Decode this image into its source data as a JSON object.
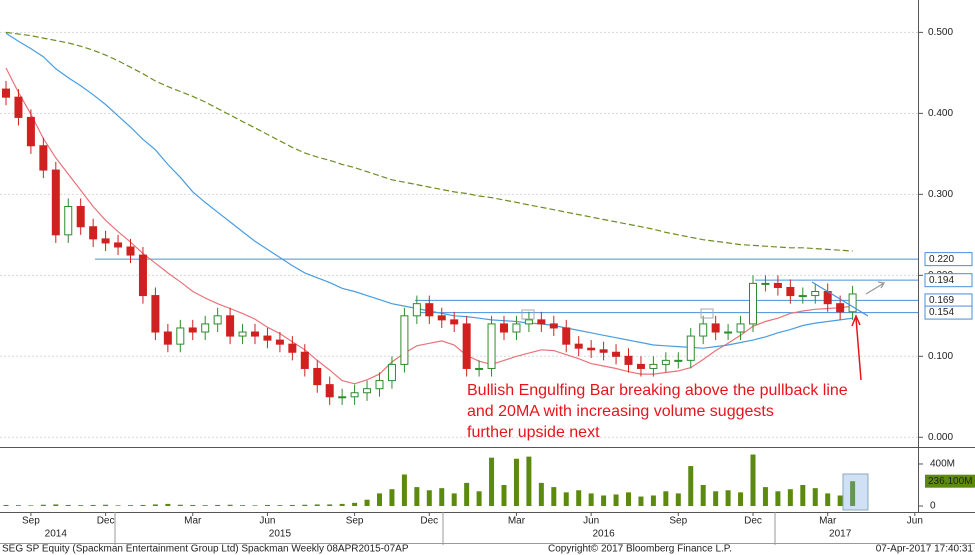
{
  "chart_data": {
    "type": "candlestick",
    "categories": [
      null,
      null,
      "Sep",
      null,
      null,
      null,
      null,
      null,
      "Dec",
      null,
      null,
      null,
      null,
      null,
      null,
      "Mar",
      null,
      null,
      null,
      null,
      null,
      "Jun",
      null,
      null,
      null,
      null,
      null,
      null,
      "Sep",
      null,
      null,
      null,
      null,
      null,
      "Dec",
      null,
      null,
      null,
      null,
      null,
      null,
      "Mar",
      null,
      null,
      null,
      null,
      null,
      "Jun",
      null,
      null,
      null,
      null,
      null,
      null,
      "Sep",
      null,
      null,
      null,
      null,
      null,
      "Dec",
      null,
      null,
      null,
      null,
      null,
      "Mar",
      null,
      null,
      null,
      null,
      null,
      null,
      "Jun"
    ],
    "year_labels": [
      null,
      null,
      null,
      null,
      "2014",
      null,
      null,
      null,
      null,
      null,
      null,
      null,
      null,
      null,
      null,
      null,
      null,
      null,
      null,
      null,
      null,
      null,
      "2015",
      null,
      null,
      null,
      null,
      null,
      null,
      null,
      null,
      null,
      null,
      null,
      null,
      null,
      null,
      null,
      null,
      null,
      null,
      null,
      null,
      null,
      null,
      null,
      null,
      null,
      "2016",
      null,
      null,
      null,
      null,
      null,
      null,
      null,
      null,
      null,
      null,
      null,
      null,
      null,
      null,
      null,
      null,
      null,
      null,
      "2017",
      null,
      null,
      null,
      null,
      null,
      null
    ],
    "candles": {
      "up_color": "#2e8b2e",
      "down_color": "#d02020",
      "open": [
        0.43,
        0.42,
        0.395,
        0.36,
        0.33,
        0.25,
        0.285,
        0.26,
        0.245,
        0.24,
        0.235,
        0.225,
        0.175,
        0.13,
        0.115,
        0.135,
        0.13,
        0.14,
        0.15,
        0.125,
        0.13,
        0.125,
        0.12,
        0.115,
        0.105,
        0.085,
        0.065,
        0.05,
        0.05,
        0.055,
        0.06,
        0.07,
        0.09,
        0.15,
        0.165,
        0.15,
        0.145,
        0.14,
        0.085,
        0.085,
        0.14,
        0.13,
        0.14,
        0.145,
        0.14,
        0.135,
        0.115,
        0.11,
        0.108,
        0.105,
        0.1,
        0.09,
        0.085,
        0.09,
        0.095,
        0.095,
        0.125,
        0.14,
        0.13,
        0.13,
        0.14,
        0.19,
        0.19,
        0.185,
        0.175,
        0.175,
        0.18,
        0.165,
        0.155,
        null,
        null,
        null,
        null,
        null
      ],
      "high": [
        0.44,
        0.43,
        0.405,
        0.37,
        0.34,
        0.295,
        0.295,
        0.27,
        0.255,
        0.25,
        0.245,
        0.235,
        0.185,
        0.14,
        0.145,
        0.145,
        0.15,
        0.16,
        0.16,
        0.14,
        0.14,
        0.135,
        0.13,
        0.125,
        0.115,
        0.095,
        0.075,
        0.06,
        0.065,
        0.07,
        0.08,
        0.1,
        0.16,
        0.175,
        0.175,
        0.16,
        0.155,
        0.15,
        0.095,
        0.15,
        0.15,
        0.15,
        0.155,
        0.155,
        0.15,
        0.145,
        0.125,
        0.12,
        0.118,
        0.115,
        0.11,
        0.1,
        0.1,
        0.105,
        0.105,
        0.135,
        0.15,
        0.15,
        0.14,
        0.15,
        0.2,
        0.2,
        0.2,
        0.195,
        0.185,
        0.19,
        0.19,
        0.175,
        0.187,
        null,
        null,
        null,
        null,
        null
      ],
      "low": [
        0.41,
        0.385,
        0.35,
        0.32,
        0.24,
        0.24,
        0.25,
        0.235,
        0.23,
        0.225,
        0.215,
        0.165,
        0.12,
        0.105,
        0.105,
        0.12,
        0.12,
        0.13,
        0.115,
        0.115,
        0.115,
        0.11,
        0.105,
        0.095,
        0.075,
        0.055,
        0.04,
        0.04,
        0.04,
        0.045,
        0.05,
        0.06,
        0.08,
        0.14,
        0.14,
        0.135,
        0.13,
        0.075,
        0.075,
        0.075,
        0.12,
        0.12,
        0.13,
        0.13,
        0.125,
        0.105,
        0.1,
        0.098,
        0.095,
        0.09,
        0.08,
        0.075,
        0.075,
        0.08,
        0.085,
        0.085,
        0.115,
        0.12,
        0.12,
        0.12,
        0.13,
        0.18,
        0.175,
        0.165,
        0.165,
        0.165,
        0.155,
        0.145,
        0.145,
        null,
        null,
        null,
        null,
        null
      ],
      "close": [
        0.42,
        0.395,
        0.36,
        0.33,
        0.25,
        0.285,
        0.26,
        0.245,
        0.24,
        0.235,
        0.225,
        0.175,
        0.13,
        0.115,
        0.135,
        0.13,
        0.14,
        0.15,
        0.125,
        0.13,
        0.125,
        0.12,
        0.115,
        0.105,
        0.085,
        0.065,
        0.05,
        0.05,
        0.055,
        0.06,
        0.07,
        0.09,
        0.15,
        0.165,
        0.15,
        0.145,
        0.14,
        0.085,
        0.085,
        0.14,
        0.13,
        0.14,
        0.145,
        0.14,
        0.135,
        0.115,
        0.11,
        0.108,
        0.105,
        0.1,
        0.09,
        0.085,
        0.09,
        0.095,
        0.095,
        0.125,
        0.14,
        0.13,
        0.13,
        0.14,
        0.19,
        0.19,
        0.185,
        0.175,
        0.175,
        0.18,
        0.165,
        0.155,
        0.177,
        null,
        null,
        null,
        null,
        null
      ]
    },
    "series": [
      {
        "color": "#e8737a",
        "dash": false,
        "values": [
          0.456,
          0.426,
          0.399,
          0.369,
          0.345,
          0.325,
          0.305,
          0.285,
          0.268,
          0.254,
          0.241,
          0.227,
          0.215,
          0.203,
          0.192,
          0.18,
          0.172,
          0.165,
          0.159,
          0.153,
          0.146,
          0.136,
          0.128,
          0.118,
          0.108,
          0.095,
          0.083,
          0.07,
          0.066,
          0.071,
          0.078,
          0.093,
          0.104,
          0.113,
          0.116,
          0.119,
          0.114,
          0.101,
          0.094,
          0.09,
          0.095,
          0.1,
          0.104,
          0.108,
          0.107,
          0.102,
          0.097,
          0.091,
          0.088,
          0.085,
          0.081,
          0.078,
          0.078,
          0.08,
          0.082,
          0.086,
          0.096,
          0.107,
          0.116,
          0.126,
          0.137,
          0.143,
          0.147,
          0.153,
          0.156,
          0.158,
          0.159,
          0.16,
          0.162,
          null,
          null,
          null,
          null,
          null
        ]
      },
      {
        "color": "#4a9de0",
        "dash": false,
        "values": [
          0.499,
          0.489,
          0.48,
          0.47,
          0.455,
          0.444,
          0.434,
          0.423,
          0.411,
          0.397,
          0.383,
          0.368,
          0.355,
          0.337,
          0.321,
          0.303,
          0.29,
          0.278,
          0.266,
          0.254,
          0.242,
          0.232,
          0.222,
          0.212,
          0.203,
          0.197,
          0.191,
          0.184,
          0.18,
          0.175,
          0.17,
          0.165,
          0.162,
          0.159,
          0.156,
          0.153,
          0.15,
          0.149,
          0.147,
          0.145,
          0.144,
          0.143,
          0.141,
          0.14,
          0.138,
          0.135,
          0.132,
          0.129,
          0.126,
          0.123,
          0.12,
          0.117,
          0.114,
          0.113,
          0.112,
          0.111,
          0.11,
          0.112,
          0.114,
          0.117,
          0.12,
          0.124,
          0.129,
          0.133,
          0.138,
          0.141,
          0.143,
          0.145,
          0.147,
          null,
          null,
          null,
          null,
          null
        ]
      },
      {
        "color": "#6b8e23",
        "dash": true,
        "values": [
          0.5,
          0.498,
          0.496,
          0.493,
          0.49,
          0.487,
          0.483,
          0.478,
          0.472,
          0.465,
          0.457,
          0.449,
          0.44,
          0.433,
          0.427,
          0.421,
          0.414,
          0.406,
          0.398,
          0.39,
          0.382,
          0.374,
          0.366,
          0.358,
          0.351,
          0.346,
          0.342,
          0.337,
          0.333,
          0.328,
          0.323,
          0.318,
          0.315,
          0.312,
          0.309,
          0.306,
          0.303,
          0.301,
          0.298,
          0.296,
          0.293,
          0.29,
          0.287,
          0.284,
          0.281,
          0.278,
          0.275,
          0.272,
          0.269,
          0.266,
          0.263,
          0.26,
          0.257,
          0.253,
          0.25,
          0.247,
          0.244,
          0.242,
          0.24,
          0.238,
          0.237,
          0.236,
          0.235,
          0.234,
          0.234,
          0.233,
          0.232,
          0.231,
          0.23,
          null,
          null,
          null,
          null,
          null
        ]
      }
    ],
    "ylim": [
      -0.012,
      0.54
    ],
    "yticks": [
      {
        "value": 0,
        "label": "0.000"
      },
      {
        "value": 0.1,
        "label": "0.100"
      },
      {
        "value": 0.2,
        "label": "0.200"
      },
      {
        "value": 0.3,
        "label": "0.300"
      },
      {
        "value": 0.4,
        "label": "0.400"
      },
      {
        "value": 0.5,
        "label": "0.500"
      }
    ],
    "grid": true,
    "levels": {
      "color": "#4a8fdc",
      "values": [
        {
          "value": 0.22,
          "label": "0.220"
        },
        {
          "value": 0.194,
          "label": "0.194"
        },
        {
          "value": 0.169,
          "label": "0.169"
        },
        {
          "value": 0.154,
          "label": "0.154"
        }
      ]
    },
    "volume": {
      "color": "#5c8a0f",
      "values": [
        10,
        8,
        6,
        12,
        15,
        10,
        8,
        10,
        12,
        6,
        8,
        10,
        15,
        20,
        12,
        10,
        8,
        10,
        12,
        8,
        6,
        10,
        8,
        10,
        12,
        15,
        15,
        20,
        30,
        60,
        120,
        160,
        300,
        180,
        150,
        170,
        120,
        220,
        140,
        460,
        200,
        450,
        470,
        220,
        180,
        130,
        150,
        120,
        100,
        110,
        130,
        90,
        100,
        140,
        120,
        380,
        200,
        140,
        150,
        130,
        490,
        180,
        140,
        160,
        200,
        170,
        120,
        100,
        236.1,
        null,
        null,
        null,
        null,
        null
      ],
      "value_labels": [
        null,
        null,
        null,
        null,
        null,
        null,
        null,
        null,
        null,
        null,
        null,
        null,
        null,
        null,
        null,
        null,
        null,
        null,
        null,
        null,
        null,
        null,
        null,
        null,
        null,
        null,
        null,
        null,
        null,
        null,
        null,
        null,
        null,
        null,
        null,
        null,
        null,
        null,
        null,
        null,
        null,
        null,
        null,
        null,
        null,
        null,
        null,
        null,
        null,
        null,
        null,
        null,
        null,
        null,
        null,
        null,
        null,
        null,
        null,
        null,
        null,
        null,
        null,
        null,
        null,
        null,
        null,
        null,
        "236.100M",
        null,
        null,
        null,
        null,
        null
      ],
      "ylim": [
        -57,
        533
      ],
      "yticks": [
        0,
        {
          "value": 400,
          "label": "400M"
        }
      ]
    },
    "annotation": [
      "Bullish Engulfing Bar breaking above the pullback line",
      "and 20MA with increasing volume suggests",
      "further upside next"
    ],
    "footer": {
      "left": "SEG SP Equity (Spackman Entertainment Group Ltd) Spackman  Weekly 08APR2015-07AP",
      "center": "Copyright© 2017 Bloomberg Finance L.P.",
      "right": "07-Apr-2017 17:40:31"
    }
  }
}
